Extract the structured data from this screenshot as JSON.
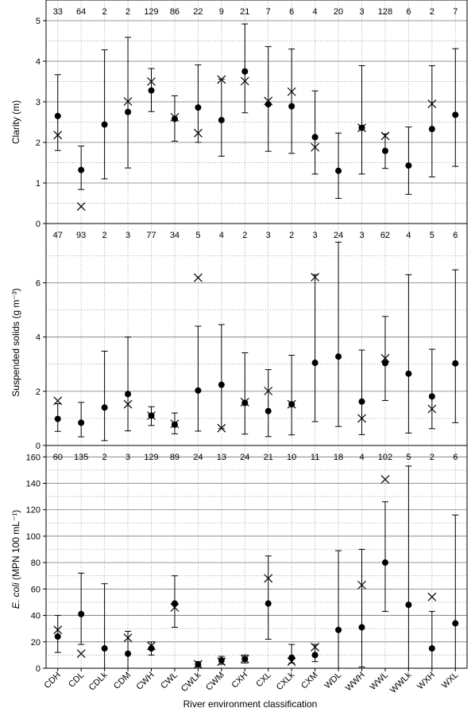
{
  "chart_data": [
    {
      "type": "errorbar",
      "ylabel": "Clarity (m)",
      "ylim": [
        0,
        5
      ],
      "yticks": [
        0,
        1,
        2,
        3,
        4,
        5
      ],
      "grid": "horizontal (major solid, minor dotted) and vertical dotted",
      "categories": [
        "CDH",
        "CDL",
        "CDLk",
        "CDM",
        "CWH",
        "CWL",
        "CWLk",
        "CWM",
        "CXH",
        "CXL",
        "CXLk",
        "CXM",
        "WDL",
        "WWH",
        "WWL",
        "WWLk",
        "WXH",
        "WXL"
      ],
      "n": [
        "33",
        "64",
        "2",
        "2",
        "129",
        "86",
        "22",
        "9",
        "21",
        "7",
        "6",
        "4",
        "20",
        "3",
        "128",
        "6",
        "2",
        "7"
      ],
      "mean": [
        2.65,
        1.32,
        2.44,
        2.75,
        3.28,
        2.58,
        2.86,
        2.55,
        3.75,
        2.94,
        2.89,
        2.13,
        1.3,
        2.36,
        1.79,
        1.43,
        2.33,
        2.68
      ],
      "lower": [
        1.8,
        0.84,
        1.1,
        1.37,
        2.76,
        2.03,
        2.0,
        1.66,
        2.73,
        1.78,
        1.73,
        1.22,
        0.62,
        1.22,
        1.36,
        0.72,
        1.15,
        1.41
      ],
      "upper": [
        3.67,
        1.91,
        4.28,
        4.59,
        3.82,
        3.15,
        3.91,
        3.56,
        4.92,
        4.36,
        4.3,
        3.27,
        2.23,
        3.89,
        2.21,
        2.38,
        3.89,
        4.31
      ],
      "median": [
        2.18,
        0.42,
        null,
        3.01,
        3.5,
        2.62,
        2.23,
        3.55,
        3.51,
        3.02,
        3.25,
        1.88,
        null,
        2.36,
        2.16,
        null,
        2.95,
        null
      ]
    },
    {
      "type": "errorbar",
      "ylabel": "Suspended solids (g m⁻³)",
      "ylim": [
        0,
        7.6
      ],
      "yticks": [
        0,
        2,
        4,
        6
      ],
      "categories": [
        "CDH",
        "CDL",
        "CDLk",
        "CDM",
        "CWH",
        "CWL",
        "CWLk",
        "CWM",
        "CXH",
        "CXL",
        "CXLk",
        "CXM",
        "WDL",
        "WWH",
        "WWL",
        "WWLk",
        "WXH",
        "WXL"
      ],
      "n": [
        "47",
        "93",
        "2",
        "3",
        "77",
        "34",
        "5",
        "4",
        "2",
        "3",
        "2",
        "3",
        "24",
        "3",
        "62",
        "4",
        "5",
        "6"
      ],
      "mean": [
        0.98,
        0.84,
        1.4,
        1.9,
        1.1,
        0.77,
        2.03,
        2.24,
        1.57,
        1.27,
        1.52,
        3.05,
        3.28,
        1.62,
        3.04,
        2.65,
        1.81,
        3.03
      ],
      "lower": [
        0.52,
        0.32,
        0.18,
        0.54,
        0.74,
        0.43,
        0.53,
        0.62,
        0.42,
        0.33,
        0.39,
        0.88,
        0.7,
        0.4,
        1.66,
        0.46,
        0.62,
        0.84
      ],
      "upper": [
        1.54,
        1.59,
        3.48,
        4.0,
        1.43,
        1.2,
        4.4,
        4.46,
        3.42,
        2.8,
        3.33,
        6.3,
        7.5,
        3.52,
        4.76,
        6.3,
        3.55,
        6.48
      ],
      "median": [
        1.65,
        null,
        null,
        1.52,
        1.1,
        0.8,
        6.19,
        0.64,
        1.6,
        2.01,
        1.52,
        6.21,
        null,
        1.0,
        3.22,
        null,
        1.35,
        null
      ]
    },
    {
      "type": "errorbar",
      "ylabel": "E. coli (MPN 100 mL⁻¹)",
      "ylabel_italic": "E. coli",
      "ylabel_rest": " (MPN 100 mL⁻¹)",
      "ylim": [
        0,
        165
      ],
      "yticks": [
        0,
        20,
        40,
        60,
        80,
        100,
        120,
        140,
        160
      ],
      "xlabel": "River environment classification",
      "categories": [
        "CDH",
        "CDL",
        "CDLk",
        "CDM",
        "CWH",
        "CWL",
        "CWLk",
        "CWM",
        "CXH",
        "CXL",
        "CXLk",
        "CXM",
        "WDL",
        "WWH",
        "WWL",
        "WWLk",
        "WXH",
        "WXL"
      ],
      "n": [
        "60",
        "135",
        "2",
        "3",
        "129",
        "89",
        "24",
        "13",
        "24",
        "21",
        "10",
        "11",
        "18",
        "4",
        "102",
        "5",
        "2",
        "6"
      ],
      "mean": [
        24,
        41,
        15,
        11,
        15,
        49,
        3,
        6,
        7,
        49,
        8,
        10,
        29,
        31,
        80,
        48,
        15,
        34
      ],
      "lower": [
        12,
        18,
        0,
        0,
        10,
        31,
        1,
        3,
        4,
        22,
        4,
        5,
        0,
        1,
        43,
        0,
        0,
        0
      ],
      "upper": [
        40,
        72,
        64,
        28,
        20,
        70,
        5,
        9,
        10,
        85,
        18,
        18,
        89,
        90,
        126,
        153,
        43,
        116
      ],
      "median": [
        29,
        11,
        null,
        23,
        17,
        46,
        3,
        5,
        7,
        68,
        5,
        16,
        null,
        63,
        143,
        null,
        54,
        null
      ]
    }
  ]
}
